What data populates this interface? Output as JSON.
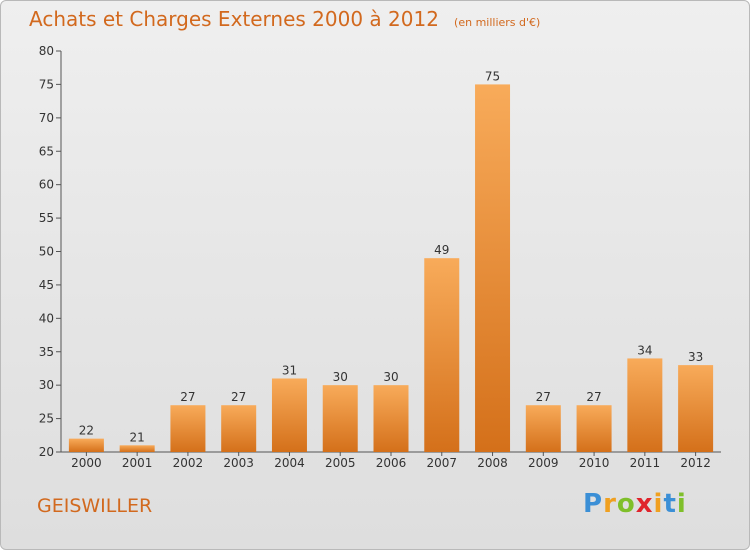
{
  "page": {
    "location": "GEISWILLER",
    "logo": {
      "letters": [
        "P",
        "r",
        "o",
        "x",
        "i",
        "t",
        "i"
      ],
      "colors": [
        "#3b8fd6",
        "#f0a020",
        "#7fbf2a",
        "#e0242c",
        "#f0a020",
        "#3b8fd6",
        "#7fbf2a"
      ]
    }
  },
  "chart_data": {
    "type": "bar",
    "title": "Achats et Charges Externes 2000 à 2012",
    "subtitle": "(en milliers d'€)",
    "xlabel": "",
    "ylabel": "",
    "categories": [
      "2000",
      "2001",
      "2002",
      "2003",
      "2004",
      "2005",
      "2006",
      "2007",
      "2008",
      "2009",
      "2010",
      "2011",
      "2012"
    ],
    "values": [
      22,
      21,
      27,
      27,
      31,
      30,
      30,
      49,
      75,
      27,
      27,
      34,
      33
    ],
    "ylim": [
      20,
      80
    ],
    "yticks": [
      20,
      25,
      30,
      35,
      40,
      45,
      50,
      55,
      60,
      65,
      70,
      75,
      80
    ],
    "grid": false,
    "legend": "none",
    "bar_color": "#f0922e",
    "bar_color_light": "#f8ab5a",
    "bar_color_dark": "#d4701a"
  }
}
